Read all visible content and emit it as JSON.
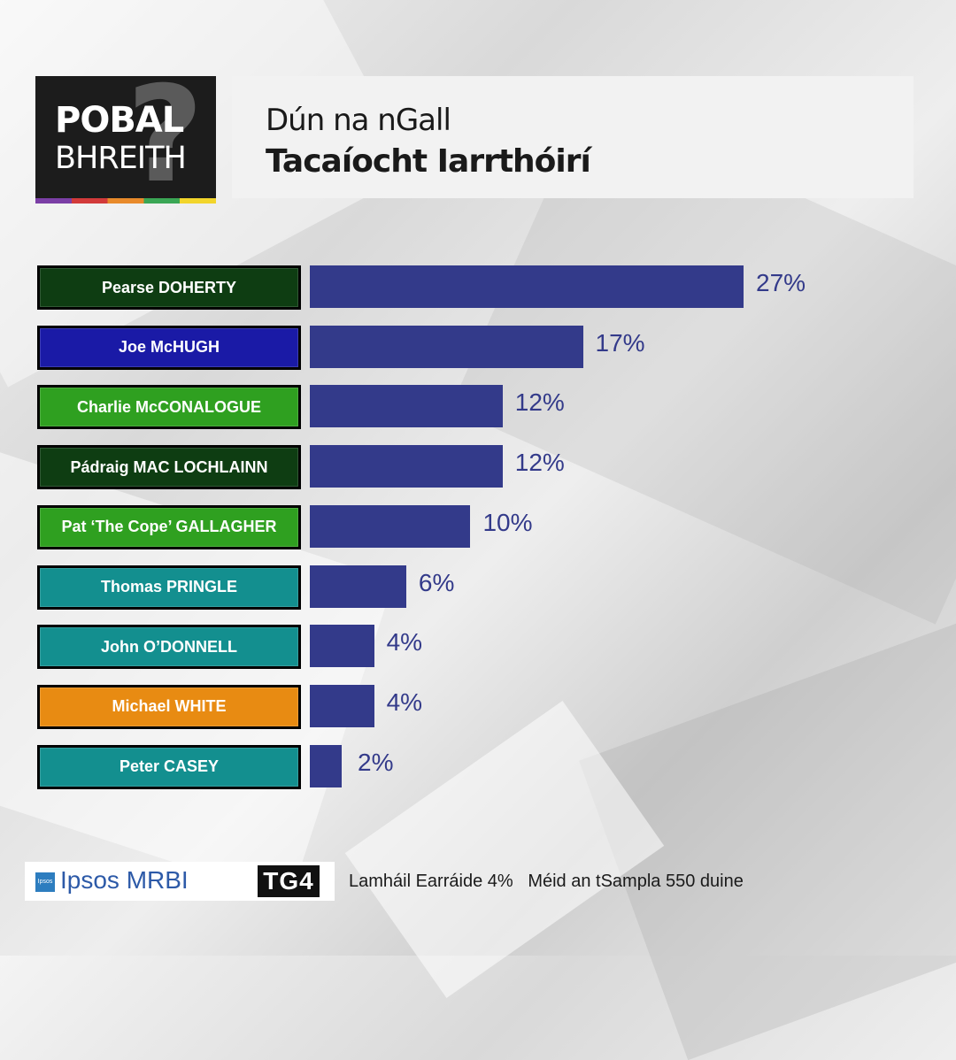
{
  "logo": {
    "line1": "POBAL",
    "line2": "BHREITH",
    "mark": "?"
  },
  "header": {
    "subtitle": "Dún na nGall",
    "title": "Tacaíocht Iarrthóirí"
  },
  "chart_data": {
    "type": "bar",
    "orientation": "horizontal",
    "categories": [
      "Pearse DOHERTY",
      "Joe McHUGH",
      "Charlie McCONALOGUE",
      "Pádraig MAC LOCHLAINN",
      "Pat ‘The Cope’ GALLAGHER",
      "Thomas PRINGLE",
      "John O’DONNELL",
      "Michael WHITE",
      "Peter CASEY"
    ],
    "values": [
      27,
      17,
      12,
      12,
      10,
      6,
      4,
      4,
      2
    ],
    "value_labels": [
      "27%",
      "17%",
      "12%",
      "12%",
      "10%",
      "6%",
      "4%",
      "4%",
      "2%"
    ],
    "label_colors": [
      "#0e3d12",
      "#1a1aa6",
      "#2fa020",
      "#0e3d12",
      "#2fa020",
      "#138f8f",
      "#138f8f",
      "#e88b12",
      "#138f8f"
    ],
    "bar_color": "#333a8a",
    "xlim": [
      0,
      27
    ],
    "grid": false
  },
  "footer": {
    "ipsos": "Ipsos MRBI",
    "ipsos_icon": "Ipsos",
    "tg4": "TG4",
    "note": "Lamháil Earráide 4%   Méid an tSampla 550 duine"
  }
}
